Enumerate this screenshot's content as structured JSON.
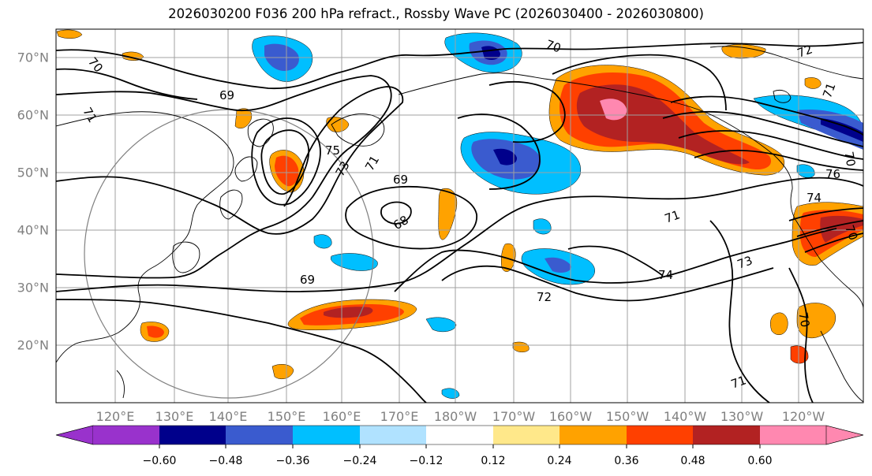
{
  "title": "2026030200 F036 200 hPa refract., Rossby Wave PC (2026030400 - 2026030800)",
  "map": {
    "lat_labels": [
      "70°N",
      "60°N",
      "50°N",
      "40°N",
      "30°N",
      "20°N"
    ],
    "lon_labels": [
      "120°E",
      "130°E",
      "140°E",
      "150°E",
      "160°E",
      "170°E",
      "180°W",
      "170°W",
      "160°W",
      "150°W",
      "140°W",
      "130°W",
      "120°W"
    ],
    "contour_labels": [
      "70",
      "69",
      "71",
      "75",
      "73",
      "71",
      "69",
      "68",
      "69",
      "72",
      "74",
      "73",
      "71",
      "74",
      "70",
      "76",
      "71",
      "70",
      "72",
      "70",
      "71",
      "70"
    ]
  },
  "colorbar": {
    "labels": [
      "−0.60",
      "−0.48",
      "−0.36",
      "−0.24",
      "−0.12",
      "0.12",
      "0.24",
      "0.36",
      "0.48",
      "0.60"
    ],
    "colors": [
      "#9932cc",
      "#00008b",
      "#3a5bcf",
      "#00bfff",
      "#b0e2ff",
      "#ffffff",
      "#ffe88a",
      "#ffa200",
      "#ff4000",
      "#b22222",
      "#ff88b0"
    ],
    "extend": "both"
  }
}
